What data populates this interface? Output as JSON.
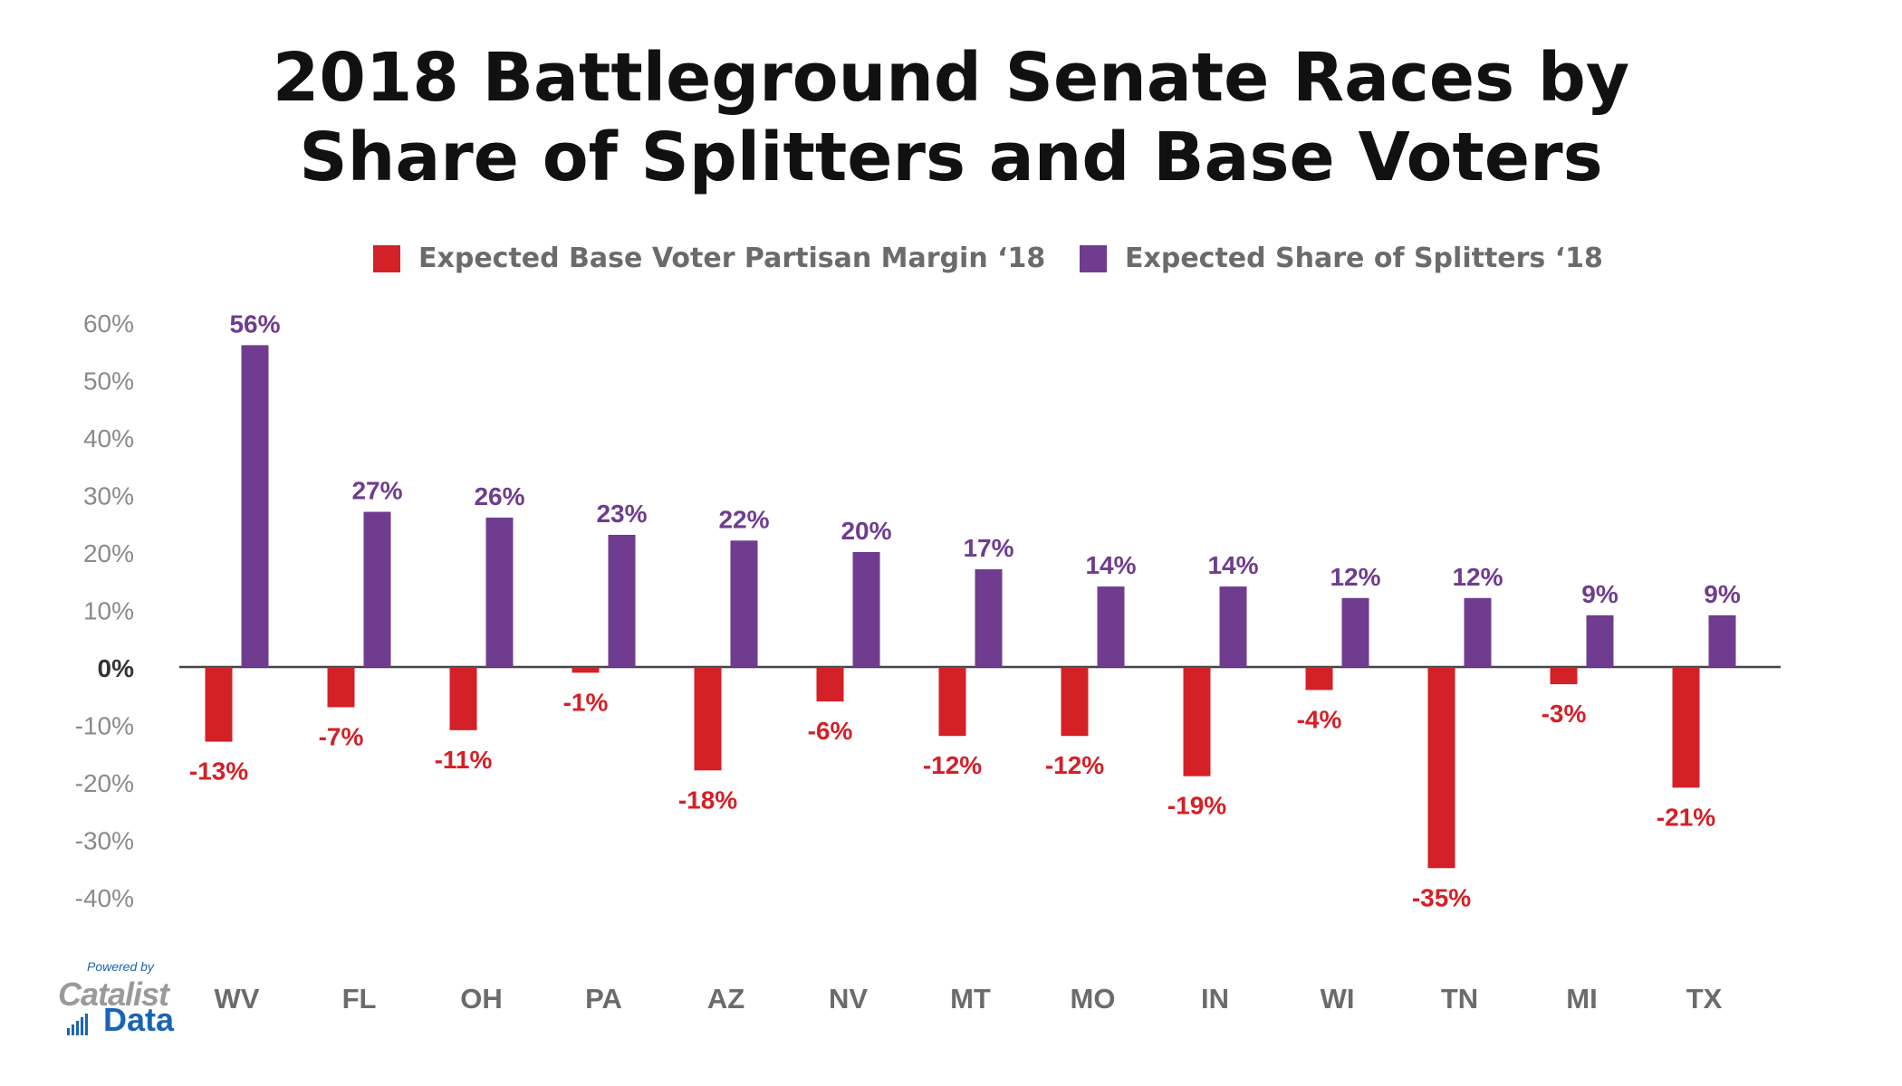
{
  "title": {
    "line1": "2018 Battleground Senate Races by",
    "line2": "Share of Splitters and Base Voters"
  },
  "legend": {
    "base": "Expected Base Voter Partisan Margin ‘18",
    "splitters": "Expected Share of Splitters ‘18"
  },
  "colors": {
    "base": "#d42027",
    "splitters": "#6f3c8f",
    "axis": "#444444",
    "tick": "#8a8a8a"
  },
  "logo": {
    "powered_by": "Powered by",
    "name1": "Catalist",
    "name2": "Data"
  },
  "chart_data": {
    "type": "bar",
    "title": "2018 Battleground Senate Races by Share of Splitters and Base Voters",
    "categories": [
      "WV",
      "FL",
      "OH",
      "PA",
      "AZ",
      "NV",
      "MT",
      "MO",
      "IN",
      "WI",
      "TN",
      "MI",
      "TX"
    ],
    "series": [
      {
        "name": "Expected Base Voter Partisan Margin ‘18",
        "values": [
          -13,
          -7,
          -11,
          -1,
          -18,
          -6,
          -12,
          -12,
          -19,
          -4,
          -35,
          -3,
          -21
        ],
        "labels": [
          "-13%",
          "-7%",
          "-11%",
          "-1%",
          "-18%",
          "-6%",
          "-12%",
          "-12%",
          "-19%",
          "-4%",
          "-35%",
          "-3%",
          "-21%"
        ]
      },
      {
        "name": "Expected Share of Splitters ‘18",
        "values": [
          56,
          27,
          26,
          23,
          22,
          20,
          17,
          14,
          14,
          12,
          12,
          9,
          9
        ],
        "labels": [
          "56%",
          "27%",
          "26%",
          "23%",
          "22%",
          "20%",
          "17%",
          "14%",
          "14%",
          "12%",
          "12%",
          "9%",
          "9%"
        ]
      }
    ],
    "yticks": [
      60,
      50,
      40,
      30,
      20,
      10,
      0,
      -10,
      -20,
      -30,
      -40
    ],
    "ytick_labels": [
      "60%",
      "50%",
      "40%",
      "30%",
      "20%",
      "10%",
      "0%",
      "-10%",
      "-20%",
      "-30%",
      "-40%"
    ],
    "ylim": [
      -40,
      60
    ],
    "xlabel": "",
    "ylabel": "",
    "grid": false,
    "legend_position": "top-center"
  }
}
